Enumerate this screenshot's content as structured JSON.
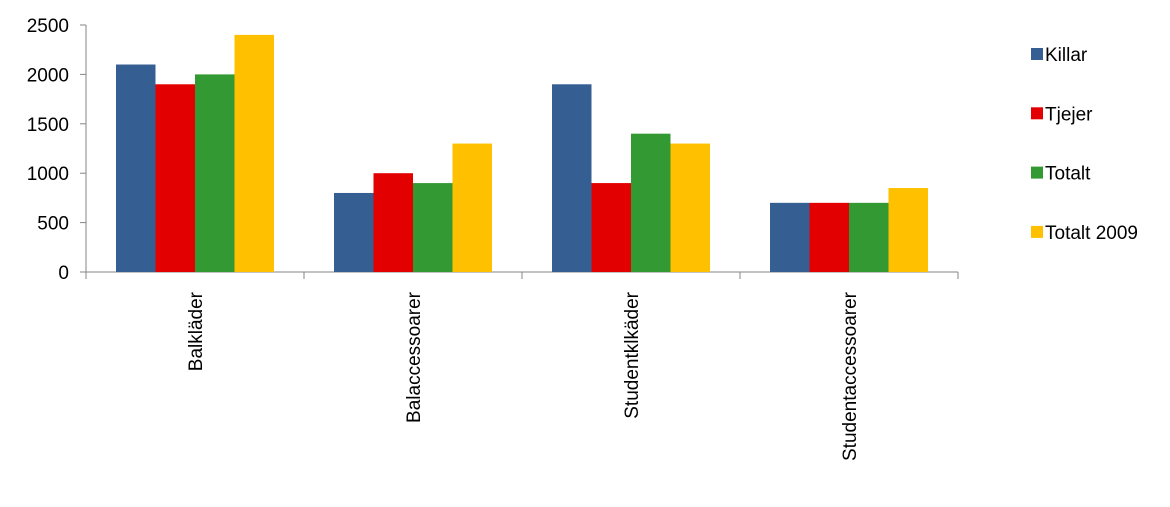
{
  "chart_data": {
    "type": "bar",
    "categories": [
      "Balkläder",
      "Balaccessoarer",
      "Studentklkäder",
      "Studentaccessoarer"
    ],
    "series": [
      {
        "name": "Killar",
        "color": "#355E92",
        "values": [
          2100,
          800,
          1900,
          700
        ]
      },
      {
        "name": "Tjejer",
        "color": "#E30000",
        "values": [
          1900,
          1000,
          900,
          700
        ]
      },
      {
        "name": "Totalt",
        "color": "#339933",
        "values": [
          2000,
          900,
          1400,
          700
        ]
      },
      {
        "name": "Totalt 2009",
        "color": "#FFC000",
        "values": [
          2400,
          1300,
          1300,
          850
        ]
      }
    ],
    "title": "",
    "xlabel": "",
    "ylabel": "",
    "ylim": [
      0,
      2500
    ],
    "yticks": [
      0,
      500,
      1000,
      1500,
      2000,
      2500
    ],
    "grid": false,
    "legend_position": "right"
  }
}
